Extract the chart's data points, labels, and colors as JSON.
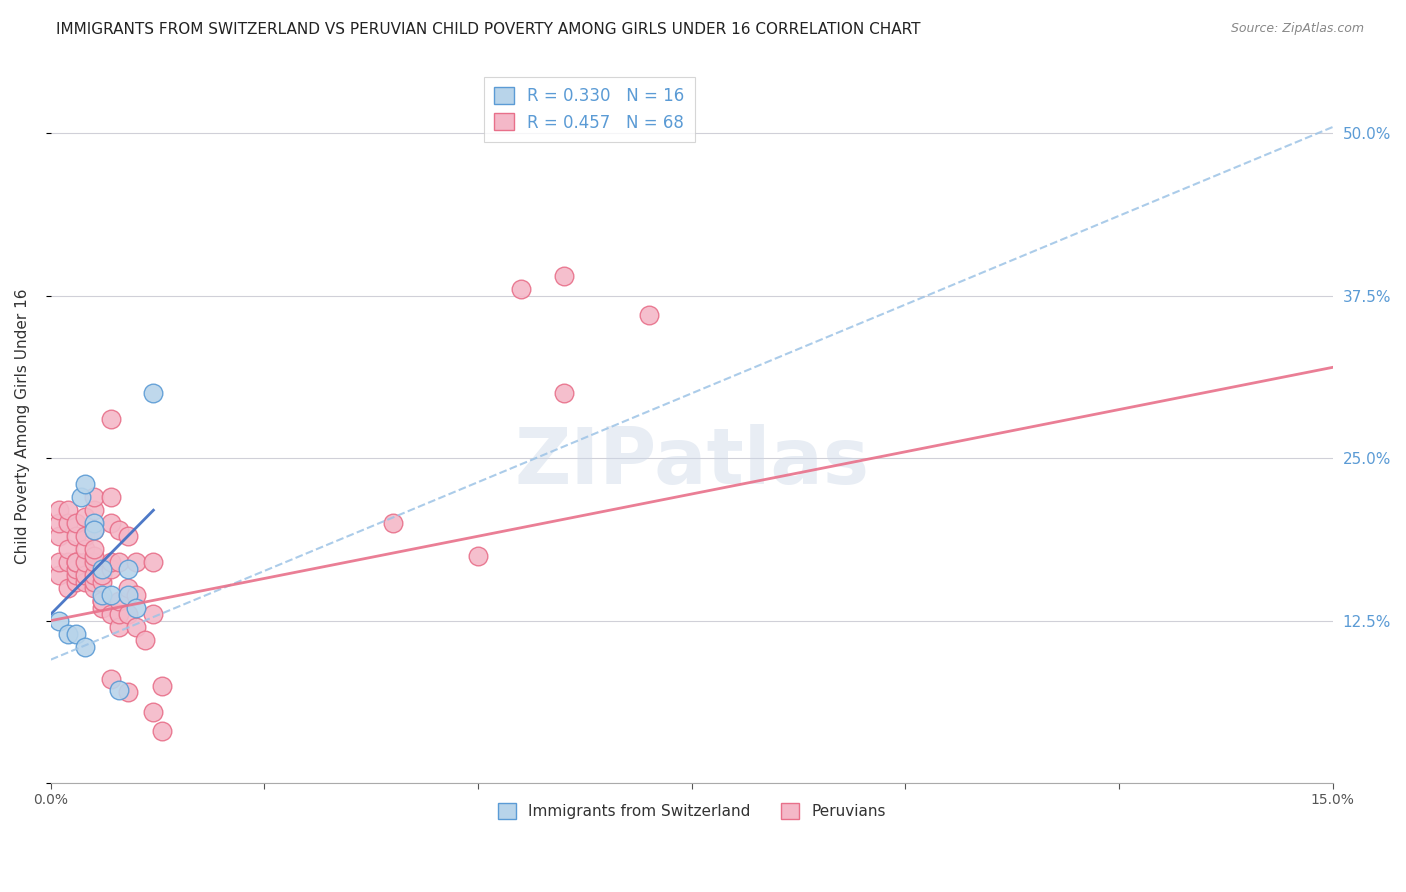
{
  "title": "IMMIGRANTS FROM SWITZERLAND VS PERUVIAN CHILD POVERTY AMONG GIRLS UNDER 16 CORRELATION CHART",
  "source": "Source: ZipAtlas.com",
  "ylabel_left": "Child Poverty Among Girls Under 16",
  "legend_blue_label": "Immigrants from Switzerland",
  "legend_pink_label": "Peruvians",
  "legend_r_blue": "R = 0.330",
  "legend_n_blue": "N = 16",
  "legend_r_pink": "R = 0.457",
  "legend_n_pink": "N = 68",
  "watermark": "ZIPatlas",
  "blue_scatter_x": [
    0.001,
    0.002,
    0.003,
    0.0035,
    0.004,
    0.004,
    0.005,
    0.005,
    0.006,
    0.006,
    0.007,
    0.008,
    0.009,
    0.009,
    0.01,
    0.012
  ],
  "blue_scatter_y": [
    0.125,
    0.115,
    0.115,
    0.22,
    0.105,
    0.23,
    0.2,
    0.195,
    0.145,
    0.165,
    0.145,
    0.072,
    0.145,
    0.165,
    0.135,
    0.3
  ],
  "pink_scatter_x": [
    0.001,
    0.001,
    0.001,
    0.001,
    0.001,
    0.002,
    0.002,
    0.002,
    0.002,
    0.002,
    0.003,
    0.003,
    0.003,
    0.003,
    0.003,
    0.003,
    0.003,
    0.004,
    0.004,
    0.004,
    0.004,
    0.004,
    0.004,
    0.005,
    0.005,
    0.005,
    0.005,
    0.005,
    0.005,
    0.005,
    0.005,
    0.005,
    0.006,
    0.006,
    0.006,
    0.006,
    0.006,
    0.007,
    0.007,
    0.007,
    0.007,
    0.007,
    0.007,
    0.007,
    0.008,
    0.008,
    0.008,
    0.008,
    0.008,
    0.009,
    0.009,
    0.009,
    0.009,
    0.01,
    0.01,
    0.01,
    0.011,
    0.012,
    0.012,
    0.012,
    0.013,
    0.013,
    0.04,
    0.05,
    0.055,
    0.06,
    0.06,
    0.07
  ],
  "pink_scatter_y": [
    0.16,
    0.17,
    0.19,
    0.2,
    0.21,
    0.15,
    0.17,
    0.18,
    0.2,
    0.21,
    0.155,
    0.16,
    0.165,
    0.17,
    0.17,
    0.19,
    0.2,
    0.155,
    0.16,
    0.17,
    0.18,
    0.19,
    0.205,
    0.15,
    0.155,
    0.16,
    0.17,
    0.175,
    0.18,
    0.195,
    0.21,
    0.22,
    0.135,
    0.14,
    0.14,
    0.155,
    0.16,
    0.08,
    0.13,
    0.165,
    0.17,
    0.2,
    0.22,
    0.28,
    0.12,
    0.13,
    0.14,
    0.17,
    0.195,
    0.07,
    0.13,
    0.15,
    0.19,
    0.12,
    0.145,
    0.17,
    0.11,
    0.055,
    0.13,
    0.17,
    0.04,
    0.075,
    0.2,
    0.175,
    0.38,
    0.3,
    0.39,
    0.36
  ],
  "blue_line_x": [
    0.0,
    0.012
  ],
  "blue_line_y": [
    0.13,
    0.21
  ],
  "dashed_line_x": [
    0.0,
    0.15
  ],
  "dashed_line_y": [
    0.095,
    0.505
  ],
  "pink_line_x": [
    0.0,
    0.15
  ],
  "pink_line_y": [
    0.125,
    0.32
  ],
  "xlim": [
    0.0,
    0.15
  ],
  "ylim": [
    0.0,
    0.55
  ],
  "xticks": [
    0.0,
    0.025,
    0.05,
    0.075,
    0.1,
    0.125,
    0.15
  ],
  "xtick_labels_show": [
    true,
    false,
    false,
    false,
    false,
    false,
    true
  ],
  "yticks": [
    0.0,
    0.125,
    0.25,
    0.375,
    0.5
  ],
  "blue_color": "#b8d4ea",
  "blue_edge_color": "#5b9bd5",
  "blue_line_color": "#4472c4",
  "dashed_line_color": "#9dc3e6",
  "pink_color": "#f4b8c8",
  "pink_edge_color": "#e8708a",
  "pink_line_color": "#e8708a",
  "grid_color": "#d0d0d8",
  "right_tick_color": "#5b9bd5",
  "background_color": "#ffffff",
  "title_fontsize": 11,
  "axis_label_fontsize": 10,
  "tick_fontsize": 10,
  "scatter_size": 180
}
